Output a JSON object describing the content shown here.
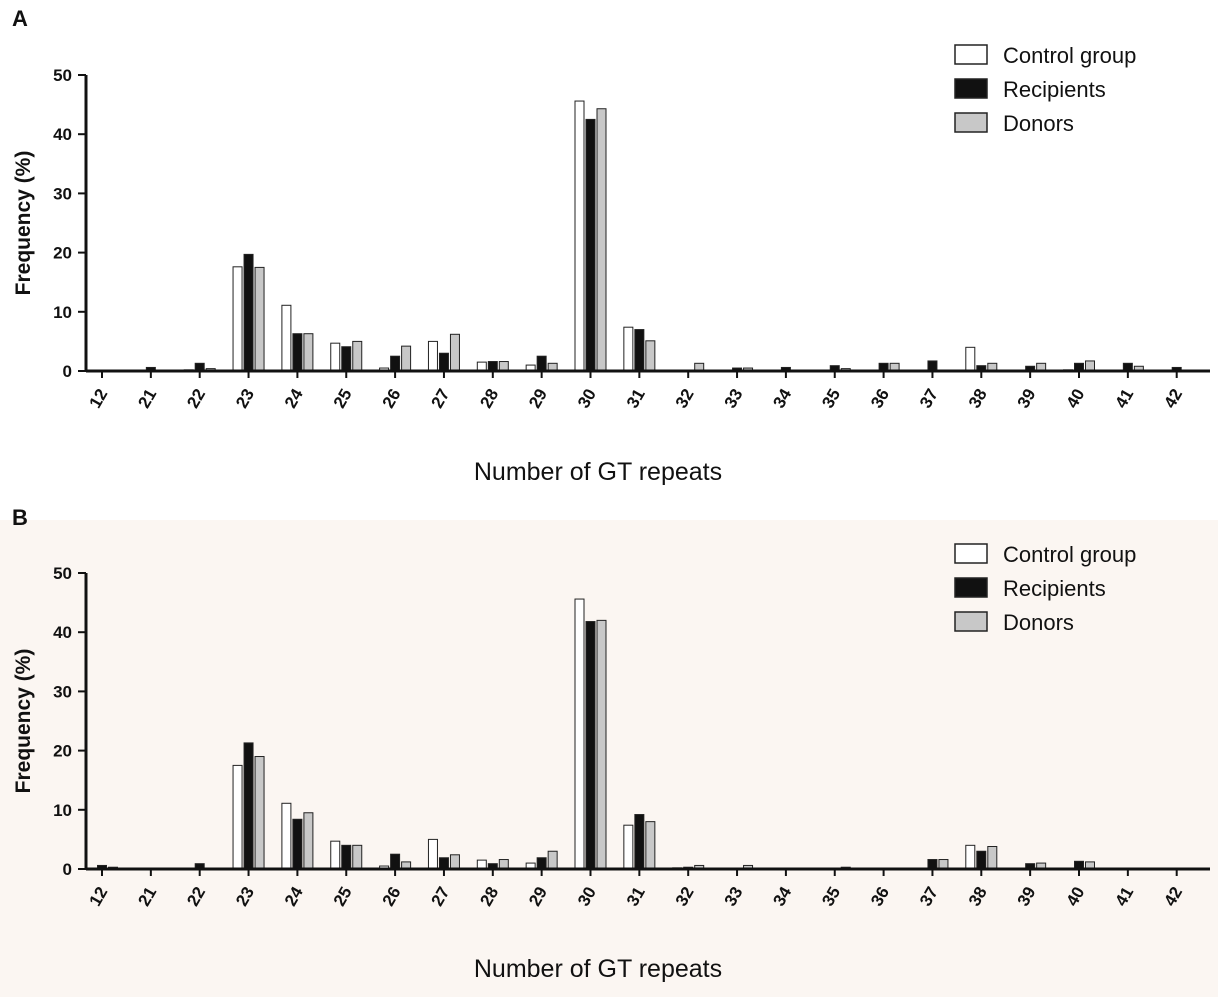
{
  "chart_data": [
    {
      "panel": "A",
      "type": "bar",
      "xlabel": "Number of GT repeats",
      "ylabel": "Frequency (%)",
      "ylim": [
        0,
        50
      ],
      "yticks": [
        "0",
        "10",
        "20",
        "30",
        "40",
        "50"
      ],
      "categories": [
        "12",
        "21",
        "22",
        "23",
        "24",
        "25",
        "26",
        "27",
        "28",
        "29",
        "30",
        "31",
        "32",
        "33",
        "34",
        "35",
        "36",
        "37",
        "38",
        "39",
        "40",
        "41",
        "42"
      ],
      "legend": [
        "Control group",
        "Recipients",
        "Donors"
      ],
      "legend_position": "top-right",
      "series": [
        {
          "name": "Control group",
          "color": "#ffffff",
          "values": [
            0,
            0,
            0.2,
            17.6,
            11.1,
            4.7,
            0.5,
            5.0,
            1.5,
            1.0,
            45.6,
            7.4,
            0,
            0,
            0,
            0,
            0.1,
            0,
            4.0,
            0.1,
            0.2,
            0.1,
            0
          ]
        },
        {
          "name": "Recipients",
          "color": "#111111",
          "values": [
            0,
            0.6,
            1.3,
            19.7,
            6.3,
            4.1,
            2.5,
            3.0,
            1.6,
            2.5,
            42.5,
            7.0,
            0,
            0.5,
            0.6,
            0.9,
            1.3,
            1.7,
            0.9,
            0.8,
            1.3,
            1.3,
            0.6
          ]
        },
        {
          "name": "Donors",
          "color": "#c8c8c8",
          "values": [
            0,
            0,
            0.4,
            17.5,
            6.3,
            5.0,
            4.2,
            6.2,
            1.6,
            1.3,
            44.3,
            5.1,
            1.3,
            0.5,
            0,
            0.4,
            1.3,
            0,
            1.3,
            1.3,
            1.7,
            0.8,
            0
          ]
        }
      ]
    },
    {
      "panel": "B",
      "type": "bar",
      "xlabel": "Number of GT repeats",
      "ylabel": "Frequency (%)",
      "ylim": [
        0,
        50
      ],
      "yticks": [
        "0",
        "10",
        "20",
        "30",
        "40",
        "50"
      ],
      "categories": [
        "12",
        "21",
        "22",
        "23",
        "24",
        "25",
        "26",
        "27",
        "28",
        "29",
        "30",
        "31",
        "32",
        "33",
        "34",
        "35",
        "36",
        "37",
        "38",
        "39",
        "40",
        "41",
        "42"
      ],
      "legend": [
        "Control group",
        "Recipients",
        "Donors"
      ],
      "legend_position": "top-right",
      "series": [
        {
          "name": "Control group",
          "color": "#ffffff",
          "values": [
            0,
            0.1,
            0.1,
            17.5,
            11.1,
            4.7,
            0.5,
            5.0,
            1.5,
            1.0,
            45.6,
            7.4,
            0.2,
            0.1,
            0,
            0.1,
            0.1,
            0,
            4.0,
            0.1,
            0.1,
            0,
            0
          ]
        },
        {
          "name": "Recipients",
          "color": "#111111",
          "values": [
            0.6,
            0,
            0.9,
            21.3,
            8.4,
            4.0,
            2.5,
            1.9,
            0.9,
            1.9,
            41.8,
            9.2,
            0.3,
            0,
            0,
            0,
            0,
            1.6,
            3.0,
            0.9,
            1.3,
            0,
            0
          ]
        },
        {
          "name": "Donors",
          "color": "#c8c8c8",
          "values": [
            0.3,
            0,
            0,
            19.0,
            9.5,
            4.0,
            1.2,
            2.4,
            1.6,
            3.0,
            42.0,
            8.0,
            0.6,
            0.6,
            0,
            0.3,
            0,
            1.6,
            3.8,
            1.0,
            1.2,
            0,
            0
          ]
        }
      ]
    }
  ]
}
